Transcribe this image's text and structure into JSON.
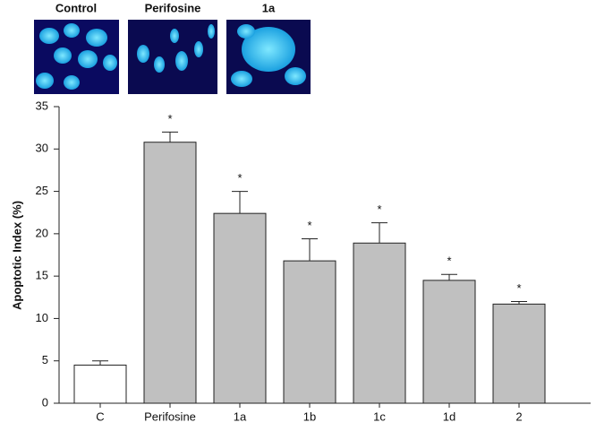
{
  "chart_data": {
    "type": "bar",
    "panels": [
      "Control",
      "Perifosine",
      "1a"
    ],
    "y_label": "Apoptotic Index (%)",
    "categories": [
      "C",
      "Perifosine",
      "1a",
      "1b",
      "1c",
      "1d",
      "2"
    ],
    "values": [
      4.5,
      30.8,
      22.4,
      16.8,
      18.9,
      14.5,
      11.7
    ],
    "errors": [
      0.5,
      1.2,
      2.6,
      2.6,
      2.4,
      0.7,
      0.3
    ],
    "significance": [
      null,
      "*",
      "*",
      "*",
      "*",
      "*",
      "*"
    ],
    "colors": [
      "#ffffff",
      "#c0c0c0",
      "#c0c0c0",
      "#c0c0c0",
      "#c0c0c0",
      "#c0c0c0",
      "#c0c0c0"
    ],
    "ylim": [
      0,
      35
    ],
    "yticks": [
      0,
      5,
      10,
      15,
      20,
      25,
      30,
      35
    ]
  }
}
